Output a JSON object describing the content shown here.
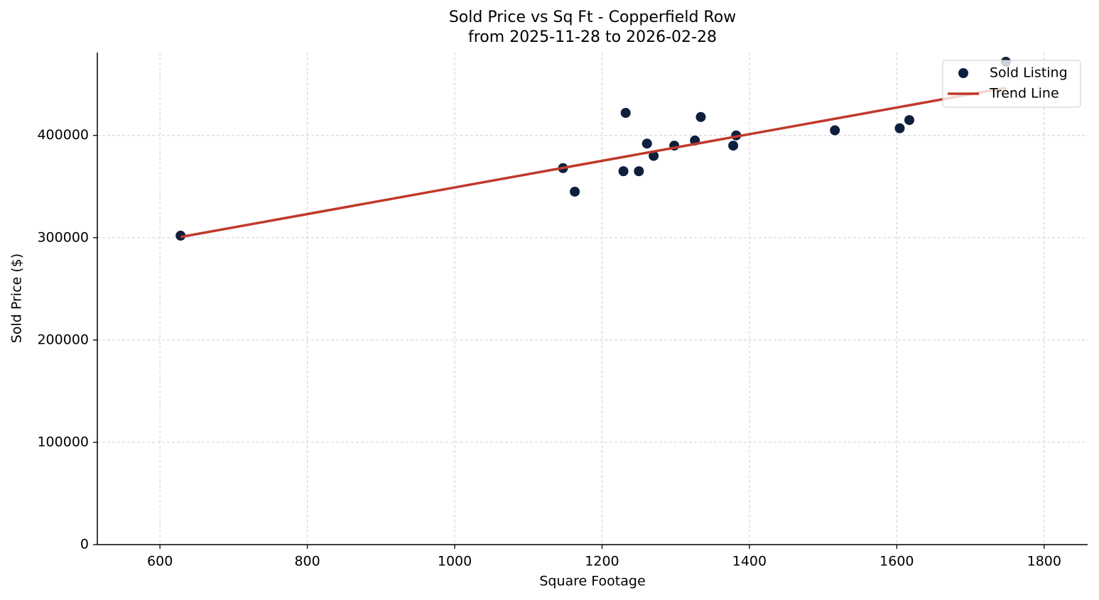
{
  "chart_data": {
    "type": "scatter",
    "title": "Sold Price vs Sq Ft - Copperfield Row",
    "subtitle": "from 2025-11-28 to 2026-02-28",
    "x_label": "Square Footage",
    "y_label": "Sold Price ($)",
    "xlim": [
      515,
      1859
    ],
    "ylim": [
      0,
      481000
    ],
    "xticks": [
      600,
      800,
      1000,
      1200,
      1400,
      1600,
      1800
    ],
    "yticks": [
      0,
      100000,
      200000,
      300000,
      400000
    ],
    "grid": true,
    "legend": "upper right",
    "series": [
      {
        "name": "Sold Listing",
        "type": "scatter",
        "color": "#0d1f3c",
        "x": [
          628,
          1147,
          1163,
          1232,
          1229,
          1250,
          1261,
          1270,
          1298,
          1326,
          1334,
          1378,
          1382,
          1516,
          1604,
          1617,
          1748
        ],
        "values": [
          302000,
          368000,
          345000,
          422000,
          365000,
          365000,
          392000,
          380000,
          390000,
          395000,
          418000,
          390000,
          400000,
          405000,
          407000,
          415000,
          472000
        ]
      },
      {
        "name": "Trend Line",
        "type": "line",
        "color": "#c0392b",
        "x": [
          628,
          1748
        ],
        "values": [
          300700,
          446500
        ]
      }
    ]
  }
}
